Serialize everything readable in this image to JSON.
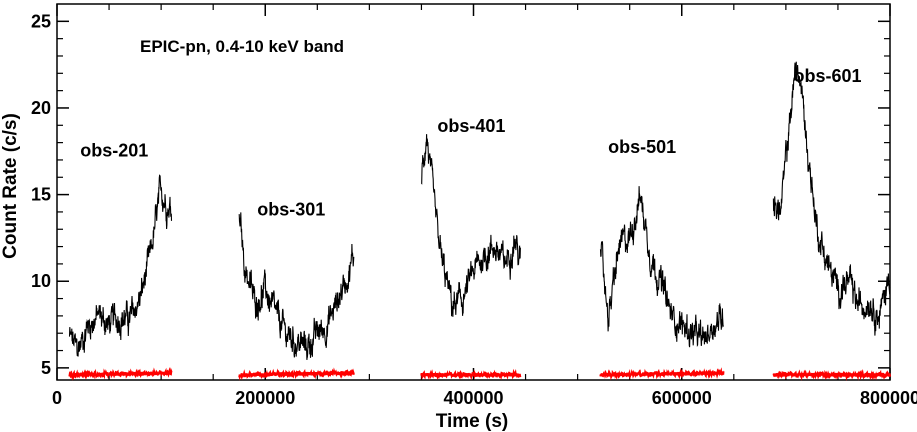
{
  "chart_data": {
    "type": "line",
    "title": "EPIC-pn, 0.4-10 keV band",
    "xlabel": "Time (s)",
    "ylabel": "Count Rate (c/s)",
    "xlim": [
      0,
      800000
    ],
    "ylim": [
      4.3,
      26
    ],
    "xticks": [
      0,
      200000,
      400000,
      600000,
      800000
    ],
    "yticks": [
      5,
      10,
      15,
      20,
      25
    ],
    "grid": false,
    "colors": {
      "source": "#000000",
      "background": "#ff0000"
    },
    "segments": [
      {
        "name": "obs-201",
        "label_at": [
          55000,
          17.2
        ],
        "source": {
          "x": [
            12000,
            20000,
            30000,
            40000,
            50000,
            60000,
            70000,
            80000,
            90000,
            95000,
            100000,
            105000,
            110000
          ],
          "y": [
            6.8,
            6.0,
            7.5,
            8.0,
            7.5,
            8.0,
            7.8,
            9.0,
            11.5,
            13.5,
            15.3,
            14.5,
            14.2
          ]
        },
        "background": {
          "x": [
            12000,
            110000
          ],
          "y": [
            4.6,
            4.7
          ]
        }
      },
      {
        "name": "obs-301",
        "label_at": [
          225000,
          13.8
        ],
        "source": {
          "x": [
            175000,
            180000,
            190000,
            200000,
            210000,
            220000,
            230000,
            240000,
            250000,
            260000,
            270000,
            280000,
            285000
          ],
          "y": [
            14.0,
            11.0,
            8.8,
            9.5,
            8.0,
            7.0,
            6.5,
            6.2,
            7.0,
            7.5,
            9.0,
            10.5,
            11.5
          ]
        },
        "background": {
          "x": [
            175000,
            285000
          ],
          "y": [
            4.6,
            4.7
          ]
        }
      },
      {
        "name": "obs-401",
        "label_at": [
          398000,
          18.6
        ],
        "source": {
          "x": [
            350000,
            355000,
            360000,
            365000,
            370000,
            380000,
            390000,
            400000,
            410000,
            420000,
            430000,
            440000,
            445000
          ],
          "y": [
            16.0,
            18.5,
            15.5,
            13.0,
            11.0,
            8.5,
            9.0,
            10.5,
            11.5,
            12.0,
            11.0,
            12.5,
            11.0
          ]
        },
        "background": {
          "x": [
            350000,
            445000
          ],
          "y": [
            4.6,
            4.6
          ]
        }
      },
      {
        "name": "obs-501",
        "label_at": [
          562000,
          17.4
        ],
        "source": {
          "x": [
            522000,
            530000,
            540000,
            550000,
            560000,
            570000,
            580000,
            590000,
            600000,
            610000,
            620000,
            630000,
            640000
          ],
          "y": [
            11.5,
            8.0,
            12.0,
            12.5,
            15.0,
            11.5,
            10.0,
            8.0,
            7.5,
            7.0,
            6.5,
            7.5,
            8.0
          ]
        },
        "background": {
          "x": [
            522000,
            640000
          ],
          "y": [
            4.6,
            4.7
          ]
        }
      },
      {
        "name": "obs-601",
        "label_at": [
          740000,
          21.5
        ],
        "source": {
          "x": [
            688000,
            695000,
            700000,
            705000,
            710000,
            715000,
            720000,
            730000,
            740000,
            750000,
            760000,
            770000,
            780000,
            790000,
            800000
          ],
          "y": [
            14.5,
            14.0,
            17.0,
            20.0,
            22.5,
            21.0,
            18.0,
            13.0,
            11.0,
            9.5,
            10.0,
            8.5,
            9.0,
            8.0,
            10.5
          ]
        },
        "background": {
          "x": [
            688000,
            800000
          ],
          "y": [
            4.6,
            4.6
          ]
        }
      }
    ]
  }
}
